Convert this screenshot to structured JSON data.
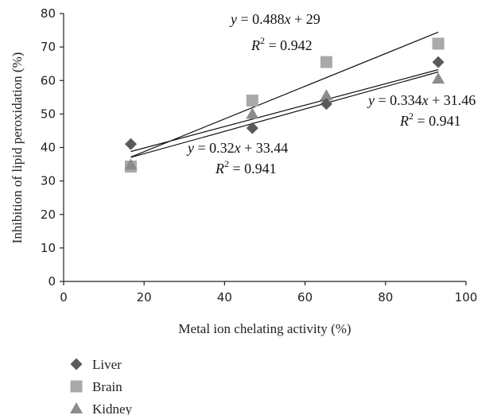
{
  "chart_data": {
    "type": "scatter",
    "xlabel": "Metal ion chelating activity (%)",
    "ylabel": "Inhibition of lipid peroxidation (%)",
    "xlim": [
      0,
      100
    ],
    "ylim": [
      0,
      80
    ],
    "xticks": [
      "0",
      "20",
      "40",
      "60",
      "80",
      "100"
    ],
    "yticks": [
      "0",
      "10",
      "20",
      "30",
      "40",
      "50",
      "60",
      "70",
      "80"
    ],
    "grid": false,
    "legend_position": "bottom-left",
    "series": [
      {
        "name": "Liver",
        "marker": "diamond",
        "color": "#5a5a5a",
        "points": [
          [
            16.7,
            41
          ],
          [
            46.9,
            45.8
          ],
          [
            65.3,
            53
          ],
          [
            93.1,
            65.5
          ]
        ],
        "trendline": {
          "slope": 0.32,
          "intercept": 33.44,
          "x_range": [
            16.7,
            93.1
          ]
        },
        "equation_parts": [
          "y",
          " = 0.32",
          "x",
          " + 33.44"
        ],
        "r2_parts": [
          "R",
          "2",
          " = 0.941"
        ]
      },
      {
        "name": "Brain",
        "marker": "square",
        "color": "#a9a9a9",
        "points": [
          [
            16.7,
            34.3
          ],
          [
            46.9,
            54
          ],
          [
            65.3,
            65.5
          ],
          [
            93.1,
            71
          ]
        ],
        "trendline": {
          "slope": 0.488,
          "intercept": 29,
          "x_range": [
            16.7,
            93.1
          ]
        },
        "equation_parts": [
          "y",
          " = 0.488",
          "x",
          " + 29"
        ],
        "r2_parts": [
          "R",
          "2",
          " = 0.942"
        ]
      },
      {
        "name": "Kidney",
        "marker": "triangle",
        "color": "#8c8c8c",
        "points": [
          [
            16.7,
            34.8
          ],
          [
            46.9,
            50
          ],
          [
            65.3,
            55.5
          ],
          [
            93.1,
            60.5
          ]
        ],
        "trendline": {
          "slope": 0.334,
          "intercept": 31.46,
          "x_range": [
            16.7,
            93.1
          ]
        },
        "equation_parts": [
          "y",
          " = 0.334",
          "x",
          " + 31.46"
        ],
        "r2_parts": [
          "R",
          "2",
          " = 0.941"
        ]
      }
    ]
  }
}
